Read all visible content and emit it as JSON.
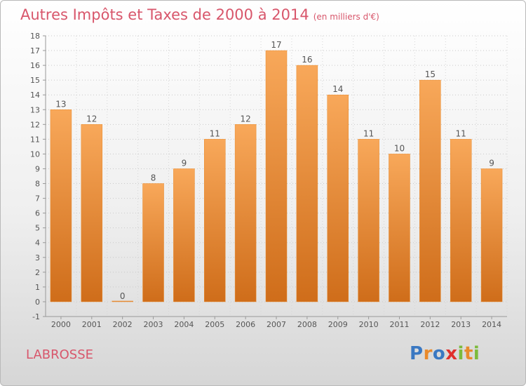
{
  "header": {
    "title": "Autres Impôts et Taxes de 2000 à 2014",
    "subtitle": "(en milliers d'€)"
  },
  "footer": {
    "place": "LABROSSE",
    "logo": {
      "letters": [
        "P",
        "r",
        "o",
        "x",
        "i",
        "t",
        "i"
      ],
      "colors": [
        "#3a78c2",
        "#e98a2b",
        "#3a78c2",
        "#e0302c",
        "#7dbb3c",
        "#e98a2b",
        "#7dbb3c"
      ]
    }
  },
  "chart_data": {
    "type": "bar",
    "title": "Autres Impôts et Taxes de 2000 à 2014",
    "subtitle": "(en milliers d'€)",
    "categories": [
      "2000",
      "2001",
      "2002",
      "2003",
      "2004",
      "2005",
      "2006",
      "2007",
      "2008",
      "2009",
      "2010",
      "2011",
      "2012",
      "2013",
      "2014"
    ],
    "values": [
      13,
      12,
      0,
      8,
      9,
      11,
      12,
      17,
      16,
      14,
      11,
      10,
      15,
      11,
      9
    ],
    "ylim": [
      -1,
      18
    ],
    "yticks": [
      -1,
      0,
      1,
      2,
      3,
      4,
      5,
      6,
      7,
      8,
      9,
      10,
      11,
      12,
      13,
      14,
      15,
      16,
      17,
      18
    ],
    "grid": "horizontal-dotted",
    "colors": {
      "bar_top": "#f8a85a",
      "bar_bottom": "#cf6d1a",
      "bar_edge": "#e98a2b",
      "text": "#555555"
    }
  }
}
